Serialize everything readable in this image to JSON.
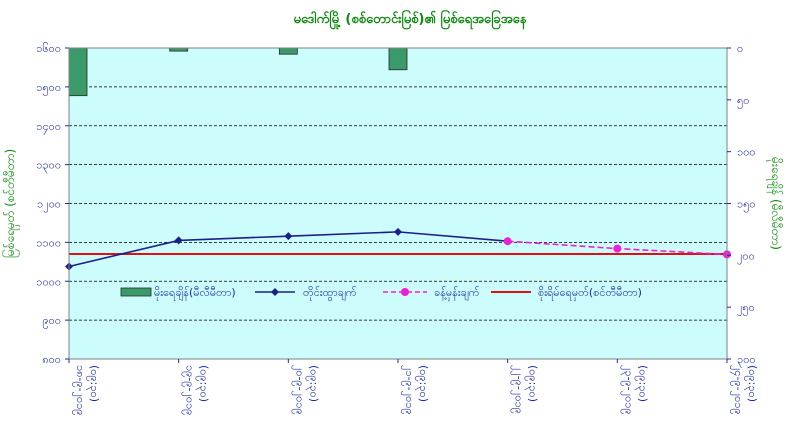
{
  "chart_data": {
    "type": "bar+line",
    "title": "မဒေါက်မြို့ (စစ်တောင်းမြစ်)၏ မြစ်ရေအခြေအနေ",
    "left_axis": {
      "label": "မြစ်ရေမှတ် (စင်တီမီတာ)",
      "ylim": [
        800,
        1600
      ],
      "tick_labels": [
        "၈၀၀",
        "၉၀၀",
        "၁၀၀၀",
        "၁၁၀၀",
        "၁၂၀၀",
        "၁၃၀၀",
        "၁၄၀၀",
        "၁၅၀၀",
        "၁၆၀၀"
      ]
    },
    "right_axis": {
      "label": "မိုးရေချိန် (မီလီမီတာ)",
      "ylim": [
        0,
        300
      ],
      "inverted": true,
      "tick_labels": [
        "၀",
        "၅၀",
        "၁၀၀",
        "၁၅၀",
        "၂၀၀",
        "၂၅၀",
        "၃၀၀"
      ]
    },
    "categories": [
      "၁၈-၉-၂၀၁၉ (၀၉:၃၀)",
      "၁၉-၉-၂၀၁၉ (၀၉:၃၀)",
      "၂၀-၉-၂၀၁၉ (၀၉:၃၀)",
      "၂၁-၉-၂၀၁၉ (၀၉:၃၀)",
      "၂၂-၉-၂၀၁၉ (၀၉:၃၀)",
      "၂၃-၉-၂၀၁၉ (၀၉:၃၀)",
      "၂၄-၉-၂၀၁၉ (၀၉:၃၀)"
    ],
    "series": [
      {
        "name": "မိုးရေချိန်(မီလီမီတာ)",
        "type": "bar",
        "axis": "right",
        "color": "#3a9a6a",
        "values": [
          46,
          3,
          6,
          21,
          0,
          0,
          0
        ]
      },
      {
        "name": "တိုင်းထွာချက်",
        "type": "line",
        "axis": "left",
        "color": "#1c1f8a",
        "values": [
          1038,
          1105,
          1116,
          1127,
          1103,
          null,
          null
        ]
      },
      {
        "name": "ခန့်မှန်းချက်",
        "type": "line-dashed",
        "axis": "left",
        "color": "#ee1ed6",
        "values": [
          null,
          null,
          null,
          null,
          1103,
          1084,
          1069
        ]
      },
      {
        "name": "စိုးရိမ်ရေမှတ်(စင်တီမီတာ)",
        "type": "hline",
        "axis": "left",
        "color": "#e01010",
        "value": 1070
      }
    ],
    "legend_position": "inside-bottom",
    "grid": true,
    "plot_background": "#ccfcfc"
  }
}
